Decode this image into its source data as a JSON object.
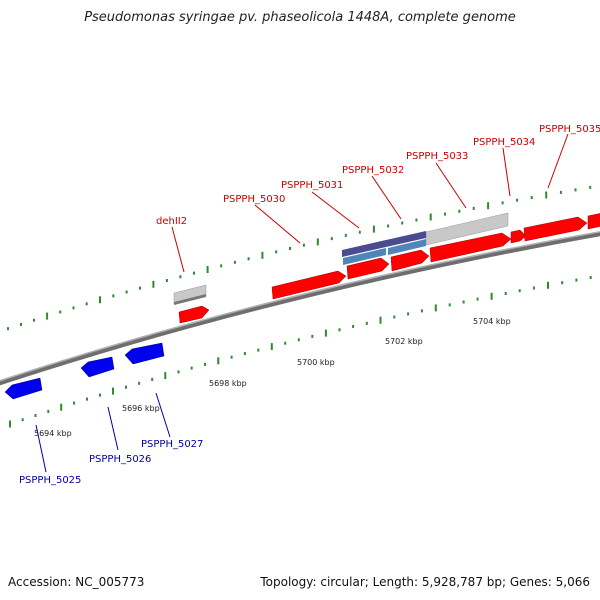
{
  "title": "Pseudomonas syringae pv. phaseolicola 1448A, complete genome",
  "footer": {
    "accession": "Accession: NC_005773",
    "summary": "Topology: circular; Length: 5,928,787 bp; Genes: 5,066"
  },
  "colors": {
    "forward_gene": "#ff0000",
    "reverse_gene": "#0000ee",
    "forward_label": "#cc0000",
    "reverse_label": "#0000aa",
    "backbone": "#888888",
    "tick": "#2e8b2e",
    "grey_feature": "#c8c8c8",
    "purple_feature": "#4b4b8f",
    "steel_feature": "#4f86b8"
  },
  "ticks": [
    {
      "label": "5694 kbp"
    },
    {
      "label": "5696 kbp"
    },
    {
      "label": "5698 kbp"
    },
    {
      "label": "5700 kbp"
    },
    {
      "label": "5702 kbp"
    },
    {
      "label": "5704 kbp"
    }
  ],
  "forward_genes": [
    {
      "label": "dehII2"
    },
    {
      "label": "PSPPH_5030"
    },
    {
      "label": "PSPPH_5031"
    },
    {
      "label": "PSPPH_5032"
    },
    {
      "label": "PSPPH_5033"
    },
    {
      "label": "PSPPH_5034"
    },
    {
      "label": "PSPPH_5035"
    }
  ],
  "reverse_genes": [
    {
      "label": "PSPPH_5025"
    },
    {
      "label": "PSPPH_5026"
    },
    {
      "label": "PSPPH_5027"
    }
  ]
}
